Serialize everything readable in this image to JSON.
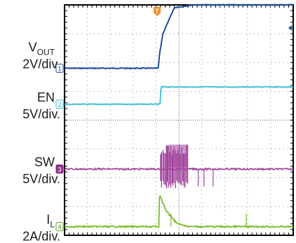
{
  "chart_data": {
    "type": "line",
    "title": "",
    "xlabel": "",
    "ylabel": "",
    "grid": true,
    "grid_divisions": {
      "x": 10,
      "y": 8
    },
    "trigger_marker": "T",
    "channels": [
      {
        "id": "1",
        "name_main": "V",
        "name_sub": "OUT",
        "scale": "2V/div.",
        "color": "#1f4e9c",
        "marker_color": "#2a4f9a",
        "y_div": [
          [
            0,
            5.8
          ],
          [
            4.1,
            5.8
          ],
          [
            4.15,
            6.25
          ],
          [
            4.3,
            7.0
          ],
          [
            4.8,
            7.9
          ],
          [
            5.6,
            8.0
          ],
          [
            10,
            8.0
          ]
        ]
      },
      {
        "id": "2",
        "name_main": "EN",
        "name_sub": "",
        "scale": "5V/div.",
        "color": "#49c3d8",
        "marker_color": "#3fb8cc",
        "y_div": [
          [
            0,
            4.55
          ],
          [
            4.18,
            4.55
          ],
          [
            4.22,
            5.15
          ],
          [
            10,
            5.15
          ]
        ]
      },
      {
        "id": "3",
        "name_main": "SW",
        "name_sub": "",
        "scale": "5V/div.",
        "color": "#a0449c",
        "marker_color": "#8a2f86",
        "baseline_div": 2.3,
        "pulse_high_div": 3.15,
        "pulse_low_div": 1.6,
        "burst_start_div": 4.2,
        "burst_end_div": 5.4,
        "stray_pulses_div": [
          5.85,
          6.1,
          6.5
        ]
      },
      {
        "id": "4",
        "name_main": "I",
        "name_sub": "L",
        "scale": "2A/div.",
        "color": "#7cbc2d",
        "marker_color": "#5e9e1f",
        "baseline_div": 0.3,
        "peak_div": 1.2,
        "peak_x_div": 4.2,
        "ring_end_div": 5.5,
        "stray_spikes_div": [
          4.65,
          7.95
        ]
      }
    ]
  }
}
